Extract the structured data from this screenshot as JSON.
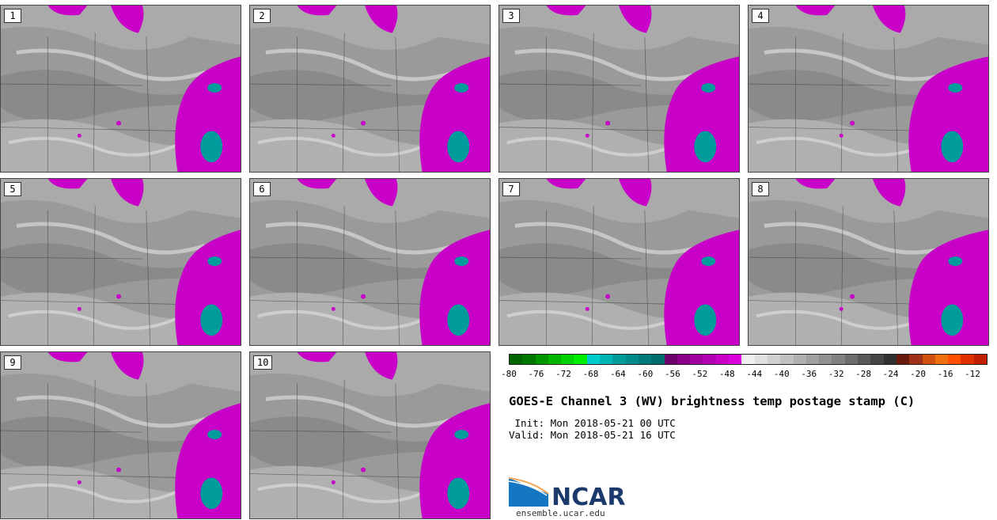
{
  "panels": [
    {
      "label": "1"
    },
    {
      "label": "2"
    },
    {
      "label": "3"
    },
    {
      "label": "4"
    },
    {
      "label": "5"
    },
    {
      "label": "6"
    },
    {
      "label": "7"
    },
    {
      "label": "8"
    },
    {
      "label": "9"
    },
    {
      "label": "10"
    }
  ],
  "colorbar": {
    "ticks": [
      "-80",
      "-76",
      "-72",
      "-68",
      "-64",
      "-60",
      "-56",
      "-52",
      "-48",
      "-44",
      "-40",
      "-36",
      "-32",
      "-28",
      "-24",
      "-20",
      "-16",
      "-12"
    ],
    "colors": [
      "#006400",
      "#007800",
      "#009600",
      "#00b400",
      "#00d200",
      "#00ee00",
      "#00cccc",
      "#00b4b4",
      "#009c9c",
      "#008a8a",
      "#007a7a",
      "#006c6c",
      "#6e006e",
      "#8a008a",
      "#a000a0",
      "#b400b4",
      "#c800c8",
      "#dc00dc",
      "#f0f0f0",
      "#e0e0e0",
      "#d0d0d0",
      "#c0c0c0",
      "#b0b0b0",
      "#a0a0a0",
      "#909090",
      "#808080",
      "#6c6c6c",
      "#585858",
      "#444444",
      "#303030",
      "#6a1a0a",
      "#a03018",
      "#d05010",
      "#f07010",
      "#ff5000",
      "#e03000",
      "#c02000"
    ]
  },
  "title": "GOES-E Channel 3 (WV) brightness temp postage stamp (C)",
  "init": " Init: Mon 2018-05-21 00 UTC",
  "valid": "Valid: Mon 2018-05-21 16 UTC",
  "logo": {
    "text": "NCAR",
    "url": "ensemble.ucar.edu"
  },
  "colors": {
    "moist_magenta": "#c800c8",
    "cold_teal": "#009c9c",
    "dry_gray": "#9c9c9c"
  }
}
